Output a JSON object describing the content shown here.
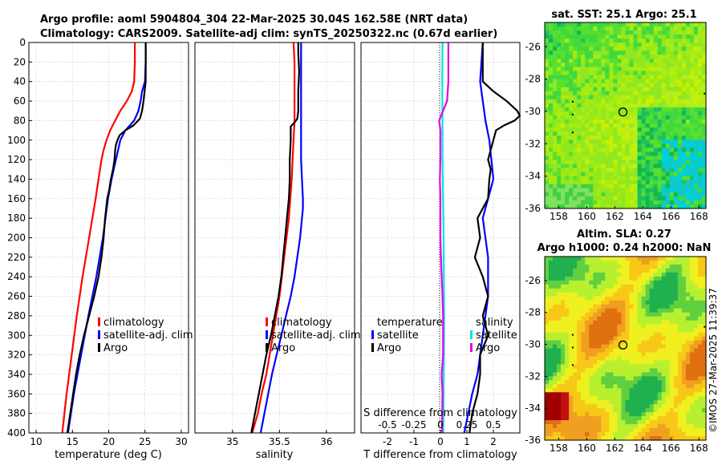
{
  "header": {
    "title_line1": "Argo profile: aoml 5904804_304 22-Mar-2025 30.04S 162.58E (NRT data)",
    "title_line2": "Climatology: CARS2009. Satellite-adj clim: synTS_20250322.nc (0.67d earlier)"
  },
  "credit": "©IMOS 27-Mar-2025 11:39:37",
  "colors": {
    "climatology": "#ff0000",
    "satellite": "#0000ff",
    "argo": "#000000",
    "temp_diff": "#00e5e5",
    "sal_diff": "#e600e6"
  },
  "chart_data": [
    {
      "id": "temperature",
      "type": "line",
      "xlabel": "temperature (deg C)",
      "ylabel": "depth",
      "xlim": [
        9,
        31
      ],
      "ylim": [
        0,
        400
      ],
      "xticks": [
        "10",
        "15",
        "20",
        "25",
        "30"
      ],
      "yticks": [
        "0",
        "20",
        "40",
        "60",
        "80",
        "100",
        "120",
        "140",
        "160",
        "180",
        "200",
        "220",
        "240",
        "260",
        "280",
        "300",
        "320",
        "340",
        "360",
        "380",
        "400"
      ],
      "grid": true,
      "legend": [
        "climatology",
        "satellite-adj. clim",
        "Argo"
      ],
      "legend_position": "center-right",
      "series": [
        {
          "name": "climatology",
          "depth": [
            0,
            20,
            40,
            50,
            60,
            70,
            80,
            90,
            100,
            110,
            120,
            140,
            160,
            200,
            240,
            280,
            320,
            360,
            400
          ],
          "values": [
            23.6,
            23.6,
            23.5,
            23.2,
            22.5,
            21.6,
            20.9,
            20.2,
            19.7,
            19.3,
            19.0,
            18.6,
            18.2,
            17.3,
            16.4,
            15.6,
            14.9,
            14.2,
            13.6
          ]
        },
        {
          "name": "satellite-adj. clim",
          "depth": [
            0,
            20,
            40,
            50,
            60,
            70,
            80,
            90,
            100,
            120,
            140,
            160,
            200,
            240,
            280,
            320,
            360,
            400
          ],
          "values": [
            25.1,
            25.1,
            25.0,
            24.6,
            24.4,
            24.1,
            23.5,
            22.3,
            21.6,
            21.0,
            20.4,
            19.9,
            19.2,
            18.3,
            17.2,
            16.2,
            15.2,
            14.4
          ]
        },
        {
          "name": "Argo",
          "depth": [
            0,
            20,
            40,
            60,
            70,
            78,
            85,
            90,
            95,
            100,
            105,
            110,
            120,
            130,
            140,
            150,
            160,
            180,
            200,
            220,
            240,
            260,
            280,
            300,
            320,
            340,
            360,
            380,
            400
          ],
          "values": [
            25.1,
            25.1,
            25.1,
            24.8,
            24.6,
            24.3,
            23.4,
            22.3,
            21.5,
            21.2,
            21.0,
            20.9,
            20.8,
            20.6,
            20.3,
            20.1,
            19.8,
            19.5,
            19.3,
            19.0,
            18.6,
            18.0,
            17.3,
            16.6,
            16.0,
            15.5,
            15.1,
            14.7,
            14.3
          ]
        }
      ]
    },
    {
      "id": "salinity",
      "type": "line",
      "xlabel": "salinity",
      "xlim": [
        34.6,
        36.3
      ],
      "ylim": [
        0,
        400
      ],
      "xticks": [
        "35",
        "35.5",
        "36"
      ],
      "grid": true,
      "legend": [
        "climatology",
        "satellite-adj. clim",
        "Argo"
      ],
      "legend_position": "center-right",
      "series": [
        {
          "name": "climatology",
          "depth": [
            0,
            20,
            40,
            60,
            80,
            100,
            140,
            180,
            220,
            260,
            300,
            340,
            360,
            380,
            400
          ],
          "values": [
            35.65,
            35.66,
            35.66,
            35.66,
            35.66,
            35.65,
            35.63,
            35.6,
            35.55,
            35.5,
            35.43,
            35.36,
            35.31,
            35.27,
            35.21
          ]
        },
        {
          "name": "satellite-adj. clim",
          "depth": [
            0,
            20,
            40,
            60,
            80,
            100,
            120,
            140,
            160,
            170,
            180,
            200,
            220,
            240,
            260,
            280,
            300,
            320,
            340,
            360,
            380,
            400
          ],
          "values": [
            35.73,
            35.73,
            35.73,
            35.73,
            35.73,
            35.73,
            35.73,
            35.74,
            35.75,
            35.75,
            35.74,
            35.72,
            35.69,
            35.66,
            35.62,
            35.57,
            35.52,
            35.47,
            35.42,
            35.38,
            35.34,
            35.3
          ]
        },
        {
          "name": "Argo",
          "depth": [
            0,
            10,
            30,
            50,
            70,
            78,
            82,
            86,
            90,
            100,
            120,
            140,
            160,
            180,
            200,
            220,
            240,
            260,
            280,
            300,
            320,
            340,
            360,
            380,
            400
          ],
          "values": [
            35.7,
            35.7,
            35.71,
            35.7,
            35.7,
            35.69,
            35.66,
            35.62,
            35.62,
            35.62,
            35.61,
            35.61,
            35.6,
            35.58,
            35.56,
            35.54,
            35.52,
            35.49,
            35.45,
            35.41,
            35.36,
            35.32,
            35.28,
            35.24,
            35.2
          ]
        }
      ]
    },
    {
      "id": "differences",
      "type": "line",
      "xlabel": "T difference from climatology",
      "xlabel2": "S difference from climatology",
      "xlim": [
        -3,
        3
      ],
      "ylim": [
        0,
        400
      ],
      "xticks": [
        "-2",
        "-1",
        "0",
        "1",
        "2"
      ],
      "xticks_top": [
        "-0.5",
        "-0.25",
        "0",
        "0.25",
        "0.5"
      ],
      "grid": true,
      "legend_left_title": "temperature",
      "legend_right_title": "salinity",
      "legend_left": [
        "satellite",
        "Argo"
      ],
      "legend_right": [
        "satellite",
        "Argo"
      ],
      "series": [
        {
          "name": "T satellite",
          "kind": "temperature",
          "depth": [
            0,
            40,
            80,
            100,
            140,
            180,
            220,
            260,
            300,
            340,
            360,
            400
          ],
          "values": [
            1.6,
            1.5,
            1.7,
            1.85,
            2.0,
            1.6,
            1.8,
            1.8,
            1.6,
            1.4,
            1.2,
            0.9
          ]
        },
        {
          "name": "T Argo",
          "depth": [
            0,
            40,
            50,
            60,
            70,
            75,
            80,
            85,
            90,
            100,
            110,
            120,
            130,
            140,
            160,
            180,
            200,
            220,
            240,
            260,
            280,
            300,
            320,
            340,
            360,
            380,
            400
          ],
          "values": [
            1.6,
            1.6,
            2.0,
            2.5,
            2.9,
            3.0,
            2.8,
            2.4,
            2.1,
            2.0,
            1.9,
            1.8,
            1.9,
            1.85,
            1.8,
            1.4,
            1.5,
            1.3,
            1.6,
            1.8,
            1.6,
            1.8,
            1.5,
            1.5,
            1.4,
            1.2,
            1.1
          ]
        },
        {
          "name": "S satellite",
          "kind": "salinity",
          "depth": [
            0,
            40,
            80,
            120,
            160,
            200,
            240,
            280,
            320,
            360,
            400
          ],
          "values": [
            0.08,
            0.07,
            0.08,
            0.08,
            0.1,
            0.12,
            0.13,
            0.14,
            0.13,
            0.12,
            0.11
          ]
        },
        {
          "name": "S Argo",
          "depth": [
            0,
            20,
            40,
            60,
            70,
            80,
            90,
            100,
            120,
            140,
            160,
            180,
            200,
            220,
            240,
            260,
            280,
            300,
            320,
            340,
            360,
            380,
            400
          ],
          "values": [
            0.3,
            0.3,
            0.3,
            0.25,
            0.1,
            -0.05,
            0.0,
            0.0,
            0.0,
            -0.02,
            0.0,
            0.0,
            0.0,
            0.02,
            0.05,
            0.08,
            0.1,
            0.1,
            0.1,
            0.05,
            0.08,
            0.07,
            0.06
          ]
        }
      ]
    },
    {
      "id": "sst_map",
      "type": "heatmap",
      "title": "sat. SST: 25.1 Argo: 25.1",
      "xlim": [
        157,
        168.5
      ],
      "ylim": [
        -36,
        -24.5
      ],
      "xticks": [
        "158",
        "160",
        "162",
        "164",
        "166",
        "168"
      ],
      "yticks": [
        "-26",
        "-28",
        "-30",
        "-32",
        "-34",
        "-36"
      ],
      "marker": {
        "lon": 162.58,
        "lat": -30.04
      }
    },
    {
      "id": "sla_map",
      "type": "heatmap",
      "title": "Altim. SLA: 0.27",
      "title2": "Argo h1000: 0.24 h2000: NaN",
      "xlim": [
        157,
        168.5
      ],
      "ylim": [
        -36,
        -24.5
      ],
      "xticks": [
        "158",
        "160",
        "162",
        "164",
        "166",
        "168"
      ],
      "yticks": [
        "-26",
        "-28",
        "-30",
        "-32",
        "-34",
        "-36"
      ],
      "marker": {
        "lon": 162.58,
        "lat": -30.04
      }
    }
  ]
}
